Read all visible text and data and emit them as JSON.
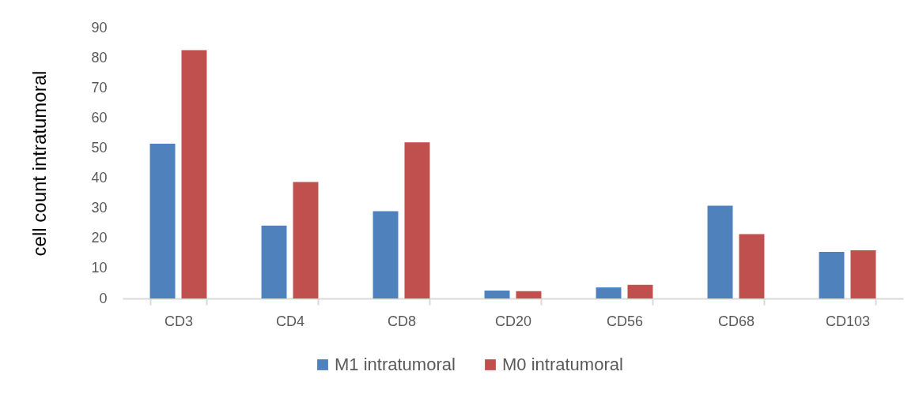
{
  "chart_data": {
    "type": "bar",
    "ylabel": "cell count intratumoral",
    "categories": [
      "CD3",
      "CD4",
      "CD8",
      "CD20",
      "CD56",
      "CD68",
      "CD103"
    ],
    "series": [
      {
        "name": "M1 intratumoral",
        "color": "#4f81bd",
        "values": [
          51.4,
          24.2,
          29.0,
          2.6,
          3.7,
          30.8,
          15.5
        ]
      },
      {
        "name": "M0 intratumoral",
        "color": "#c0504d",
        "values": [
          82.5,
          38.7,
          51.9,
          2.4,
          4.5,
          21.4,
          16.0
        ]
      }
    ],
    "ylim": [
      0,
      90
    ],
    "yticks": [
      0,
      10,
      20,
      30,
      40,
      50,
      60,
      70,
      80,
      90
    ],
    "grid": false,
    "legend": "bottom"
  }
}
